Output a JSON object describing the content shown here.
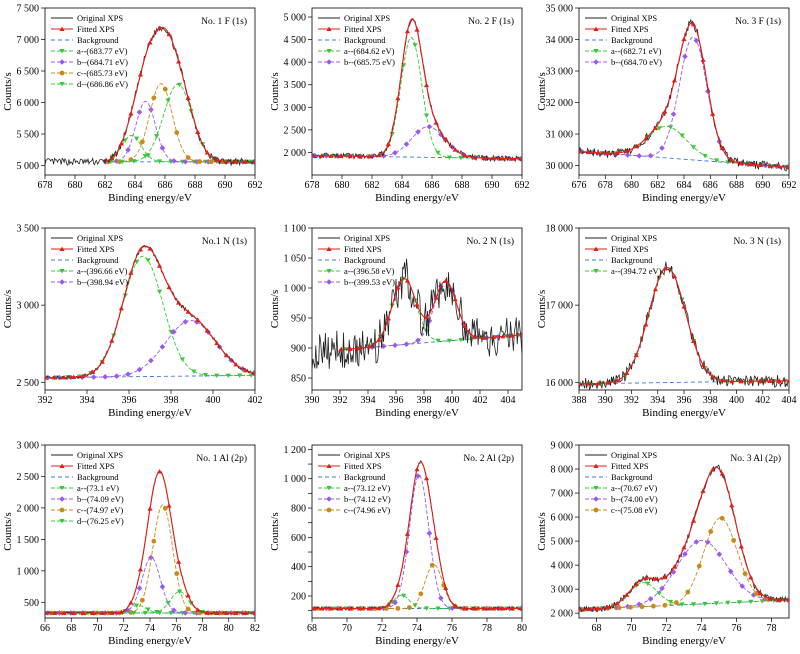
{
  "legend_labels": [
    "Original XPS",
    "Fitted XPS",
    "Background"
  ],
  "colors": {
    "original": "#222222",
    "fitted": "#e0201b",
    "background": "#3a7bd5",
    "a": "#37c837",
    "b": "#9b59f0",
    "c": "#c98a1a",
    "d": "#37c837"
  },
  "chart_data": [
    {
      "type": "line",
      "panel": "No.1 F (1s)",
      "sample": "No. 1",
      "element": "F (1s)",
      "xlabel": "Binding energy/eV",
      "ylabel": "Counts/s",
      "xlim": [
        678,
        692
      ],
      "ylim": [
        4850,
        7500
      ],
      "xticks": [
        678,
        680,
        682,
        684,
        686,
        688,
        690,
        692
      ],
      "yticks": [
        5000,
        5500,
        6000,
        6500,
        7000,
        7500
      ],
      "ytick_labels": [
        "5 000",
        "5 500",
        "6 000",
        "6 500",
        "7 000",
        "7 500"
      ],
      "background": {
        "x": [
          678,
          692
        ],
        "y": [
          5060,
          5060
        ]
      },
      "peaks": [
        {
          "label": "a--(683.77 eV)",
          "center": 683.77,
          "height": 420,
          "sigma": 0.65,
          "key": "a"
        },
        {
          "label": "b--(684.71 eV)",
          "center": 684.71,
          "height": 960,
          "sigma": 0.65,
          "key": "b"
        },
        {
          "label": "c--(685.73 eV)",
          "center": 685.73,
          "height": 1240,
          "sigma": 0.75,
          "key": "c"
        },
        {
          "label": "d--(686.86 eV)",
          "center": 686.86,
          "height": 1230,
          "sigma": 0.95,
          "key": "d"
        }
      ],
      "fit_range": [
        682,
        692
      ],
      "noise": 55
    },
    {
      "type": "line",
      "panel": "No.2 F (1s)",
      "sample": "No. 2",
      "element": "F (1s)",
      "xlabel": "Binding energy/eV",
      "ylabel": "Counts/s",
      "xlim": [
        678,
        692
      ],
      "ylim": [
        1500,
        5200
      ],
      "xticks": [
        678,
        680,
        682,
        684,
        686,
        688,
        690,
        692
      ],
      "yticks": [
        2000,
        2500,
        3000,
        3500,
        4000,
        4500,
        5000
      ],
      "ytick_labels": [
        "2 000",
        "2 500",
        "3 000",
        "3 500",
        "4 000",
        "4 500",
        "5 000"
      ],
      "background": {
        "x": [
          678,
          692
        ],
        "y": [
          1930,
          1860
        ]
      },
      "peaks": [
        {
          "label": "a--(684.62 eV)",
          "center": 684.62,
          "height": 2650,
          "sigma": 0.7,
          "key": "a"
        },
        {
          "label": "b--(685.75 eV)",
          "center": 685.75,
          "height": 680,
          "sigma": 1.1,
          "key": "b"
        }
      ],
      "fit_range": [
        678,
        692
      ],
      "noise": 60
    },
    {
      "type": "line",
      "panel": "No.3 F (1s)",
      "sample": "No. 3",
      "element": "F (1s)",
      "xlabel": "Binding energy/eV",
      "ylabel": "Counts/s",
      "xlim": [
        676,
        692
      ],
      "ylim": [
        29700,
        35000
      ],
      "xticks": [
        676,
        678,
        680,
        682,
        684,
        686,
        688,
        690,
        692
      ],
      "yticks": [
        30000,
        31000,
        32000,
        33000,
        34000,
        35000
      ],
      "ytick_labels": [
        "30 000",
        "31 000",
        "32 000",
        "33 000",
        "34 000",
        "35 000"
      ],
      "background": {
        "x": [
          676,
          692
        ],
        "y": [
          30450,
          29950
        ]
      },
      "peaks": [
        {
          "label": "a--(682.71 eV)",
          "center": 682.71,
          "height": 1000,
          "sigma": 1.5,
          "key": "a"
        },
        {
          "label": "b--(684.70 eV)",
          "center": 684.7,
          "height": 3900,
          "sigma": 1.05,
          "key": "b"
        }
      ],
      "fit_range": [
        676,
        692
      ],
      "noise": 130
    },
    {
      "type": "line",
      "panel": "No.1 N (1s)",
      "sample": "No.1",
      "element": "N (1s)",
      "xlabel": "Binding energy/eV",
      "ylabel": "Counts/s",
      "xlim": [
        392,
        402
      ],
      "ylim": [
        2450,
        3500
      ],
      "xticks": [
        392,
        394,
        396,
        398,
        400,
        402
      ],
      "yticks": [
        2500,
        3000,
        3500
      ],
      "ytick_labels": [
        "2 500",
        "3 000",
        "3 500"
      ],
      "background": {
        "x": [
          392,
          402
        ],
        "y": [
          2530,
          2545
        ]
      },
      "peaks": [
        {
          "label": "a--(396.66 eV)",
          "center": 396.66,
          "height": 780,
          "sigma": 0.95,
          "key": "a"
        },
        {
          "label": "b--(398.94 eV)",
          "center": 398.94,
          "height": 360,
          "sigma": 1.2,
          "key": "b"
        }
      ],
      "fit_range": [
        392,
        402
      ],
      "noise": 12
    },
    {
      "type": "line",
      "panel": "No.2 N (1s)",
      "sample": "No. 2",
      "element": "N (1s)",
      "xlabel": "Binding energy/eV",
      "ylabel": "Counts/s",
      "xlim": [
        390,
        405
      ],
      "ylim": [
        830,
        1100
      ],
      "xticks": [
        390,
        392,
        394,
        396,
        398,
        400,
        402,
        404
      ],
      "yticks": [
        850,
        900,
        950,
        1000,
        1050,
        1100
      ],
      "ytick_labels": [
        "850",
        "900",
        "950",
        "1 000",
        "1 050",
        "1 100"
      ],
      "background": {
        "x": [
          392,
          405
        ],
        "y": [
          897,
          922
        ]
      },
      "peaks": [
        {
          "label": "a--(396.58 eV)",
          "center": 396.58,
          "height": 110,
          "sigma": 0.85,
          "key": "a"
        },
        {
          "label": "b--(399.53 eV)",
          "center": 399.53,
          "height": 100,
          "sigma": 0.8,
          "key": "b"
        }
      ],
      "fit_range": [
        392,
        405
      ],
      "noise": 35
    },
    {
      "type": "line",
      "panel": "No.3 N (1s)",
      "sample": "No. 3",
      "element": "N (1s)",
      "xlabel": "Binding energy/eV",
      "ylabel": "Counts/s",
      "xlim": [
        388,
        404
      ],
      "ylim": [
        15900,
        18000
      ],
      "xticks": [
        388,
        390,
        392,
        394,
        396,
        398,
        400,
        402,
        404
      ],
      "yticks": [
        16000,
        17000,
        18000
      ],
      "ytick_labels": [
        "16 000",
        "17 000",
        "18 000"
      ],
      "background": {
        "x": [
          388,
          404
        ],
        "y": [
          15980,
          16020
        ]
      },
      "peaks": [
        {
          "label": "a--(394.72 eV)",
          "center": 394.72,
          "height": 1490,
          "sigma": 1.4,
          "key": "a"
        }
      ],
      "fit_range": [
        388,
        404
      ],
      "noise": 80
    },
    {
      "type": "line",
      "panel": "No.1 Al (2p)",
      "sample": "No. 1",
      "element": "Al (2p)",
      "xlabel": "Binding energy/eV",
      "ylabel": "Counts/s",
      "xlim": [
        66,
        82
      ],
      "ylim": [
        250,
        3000
      ],
      "xticks": [
        66,
        68,
        70,
        72,
        74,
        76,
        78,
        80,
        82
      ],
      "yticks": [
        500,
        1000,
        1500,
        2000,
        2500,
        3000
      ],
      "ytick_labels": [
        "500",
        "1 000",
        "1 500",
        "2 000",
        "2 500",
        "3 000"
      ],
      "background": {
        "x": [
          66,
          82
        ],
        "y": [
          330,
          330
        ]
      },
      "peaks": [
        {
          "label": "a--(73.1 eV)",
          "center": 73.1,
          "height": 120,
          "sigma": 0.6,
          "key": "a"
        },
        {
          "label": "b--(74.09 eV)",
          "center": 74.09,
          "height": 880,
          "sigma": 0.7,
          "key": "b"
        },
        {
          "label": "c--(74.97 eV)",
          "center": 74.97,
          "height": 1720,
          "sigma": 0.75,
          "key": "c"
        },
        {
          "label": "d--(76.25 eV)",
          "center": 76.25,
          "height": 340,
          "sigma": 0.7,
          "key": "d"
        }
      ],
      "fit_range": [
        66,
        82
      ],
      "noise": 15
    },
    {
      "type": "line",
      "panel": "No.2 Al (2p)",
      "sample": "No. 2",
      "element": "Al (2p)",
      "xlabel": "Binding energy/eV",
      "ylabel": "Counts/s",
      "xlim": [
        68,
        80
      ],
      "ylim": [
        50,
        1230
      ],
      "xticks": [
        68,
        70,
        72,
        74,
        76,
        78,
        80
      ],
      "yticks": [
        100,
        200,
        300,
        400,
        500,
        600,
        700,
        800,
        900,
        1000,
        1100,
        1200
      ],
      "ytick_labels": [
        "",
        "200",
        "",
        "400",
        "",
        "600",
        "",
        "800",
        "",
        "1 000",
        "",
        "1 200"
      ],
      "background": {
        "x": [
          68,
          80
        ],
        "y": [
          115,
          115
        ]
      },
      "peaks": [
        {
          "label": "a--(73.12 eV)",
          "center": 73.12,
          "height": 90,
          "sigma": 0.45,
          "key": "a"
        },
        {
          "label": "b--(74.12 eV)",
          "center": 74.12,
          "height": 910,
          "sigma": 0.55,
          "key": "b"
        },
        {
          "label": "c--(74.96 eV)",
          "center": 74.96,
          "height": 300,
          "sigma": 0.5,
          "key": "c"
        }
      ],
      "fit_range": [
        68,
        80
      ],
      "noise": 8
    },
    {
      "type": "line",
      "panel": "No.3 Al (2p)",
      "sample": "No. 3",
      "element": "Al (2p)",
      "xlabel": "Binding energy/eV",
      "ylabel": "Counts/s",
      "xlim": [
        67,
        79
      ],
      "ylim": [
        1800,
        9000
      ],
      "xticks": [
        68,
        70,
        72,
        74,
        76,
        78
      ],
      "yticks": [
        2000,
        3000,
        4000,
        5000,
        6000,
        7000,
        8000,
        9000
      ],
      "ytick_labels": [
        "2 000",
        "3 000",
        "4 000",
        "5 000",
        "6 000",
        "7 000",
        "8 000",
        "9 000"
      ],
      "background": {
        "x": [
          67,
          79
        ],
        "y": [
          2150,
          2550
        ]
      },
      "peaks": [
        {
          "label": "a--(70.67 eV)",
          "center": 70.67,
          "height": 1000,
          "sigma": 0.8,
          "key": "a"
        },
        {
          "label": "b--(74.00 eV)",
          "center": 74.0,
          "height": 2650,
          "sigma": 1.4,
          "key": "b"
        },
        {
          "label": "c--(75.08 eV)",
          "center": 75.08,
          "height": 3550,
          "sigma": 0.95,
          "key": "c"
        }
      ],
      "fit_range": [
        67,
        79
      ],
      "noise": 130
    }
  ]
}
